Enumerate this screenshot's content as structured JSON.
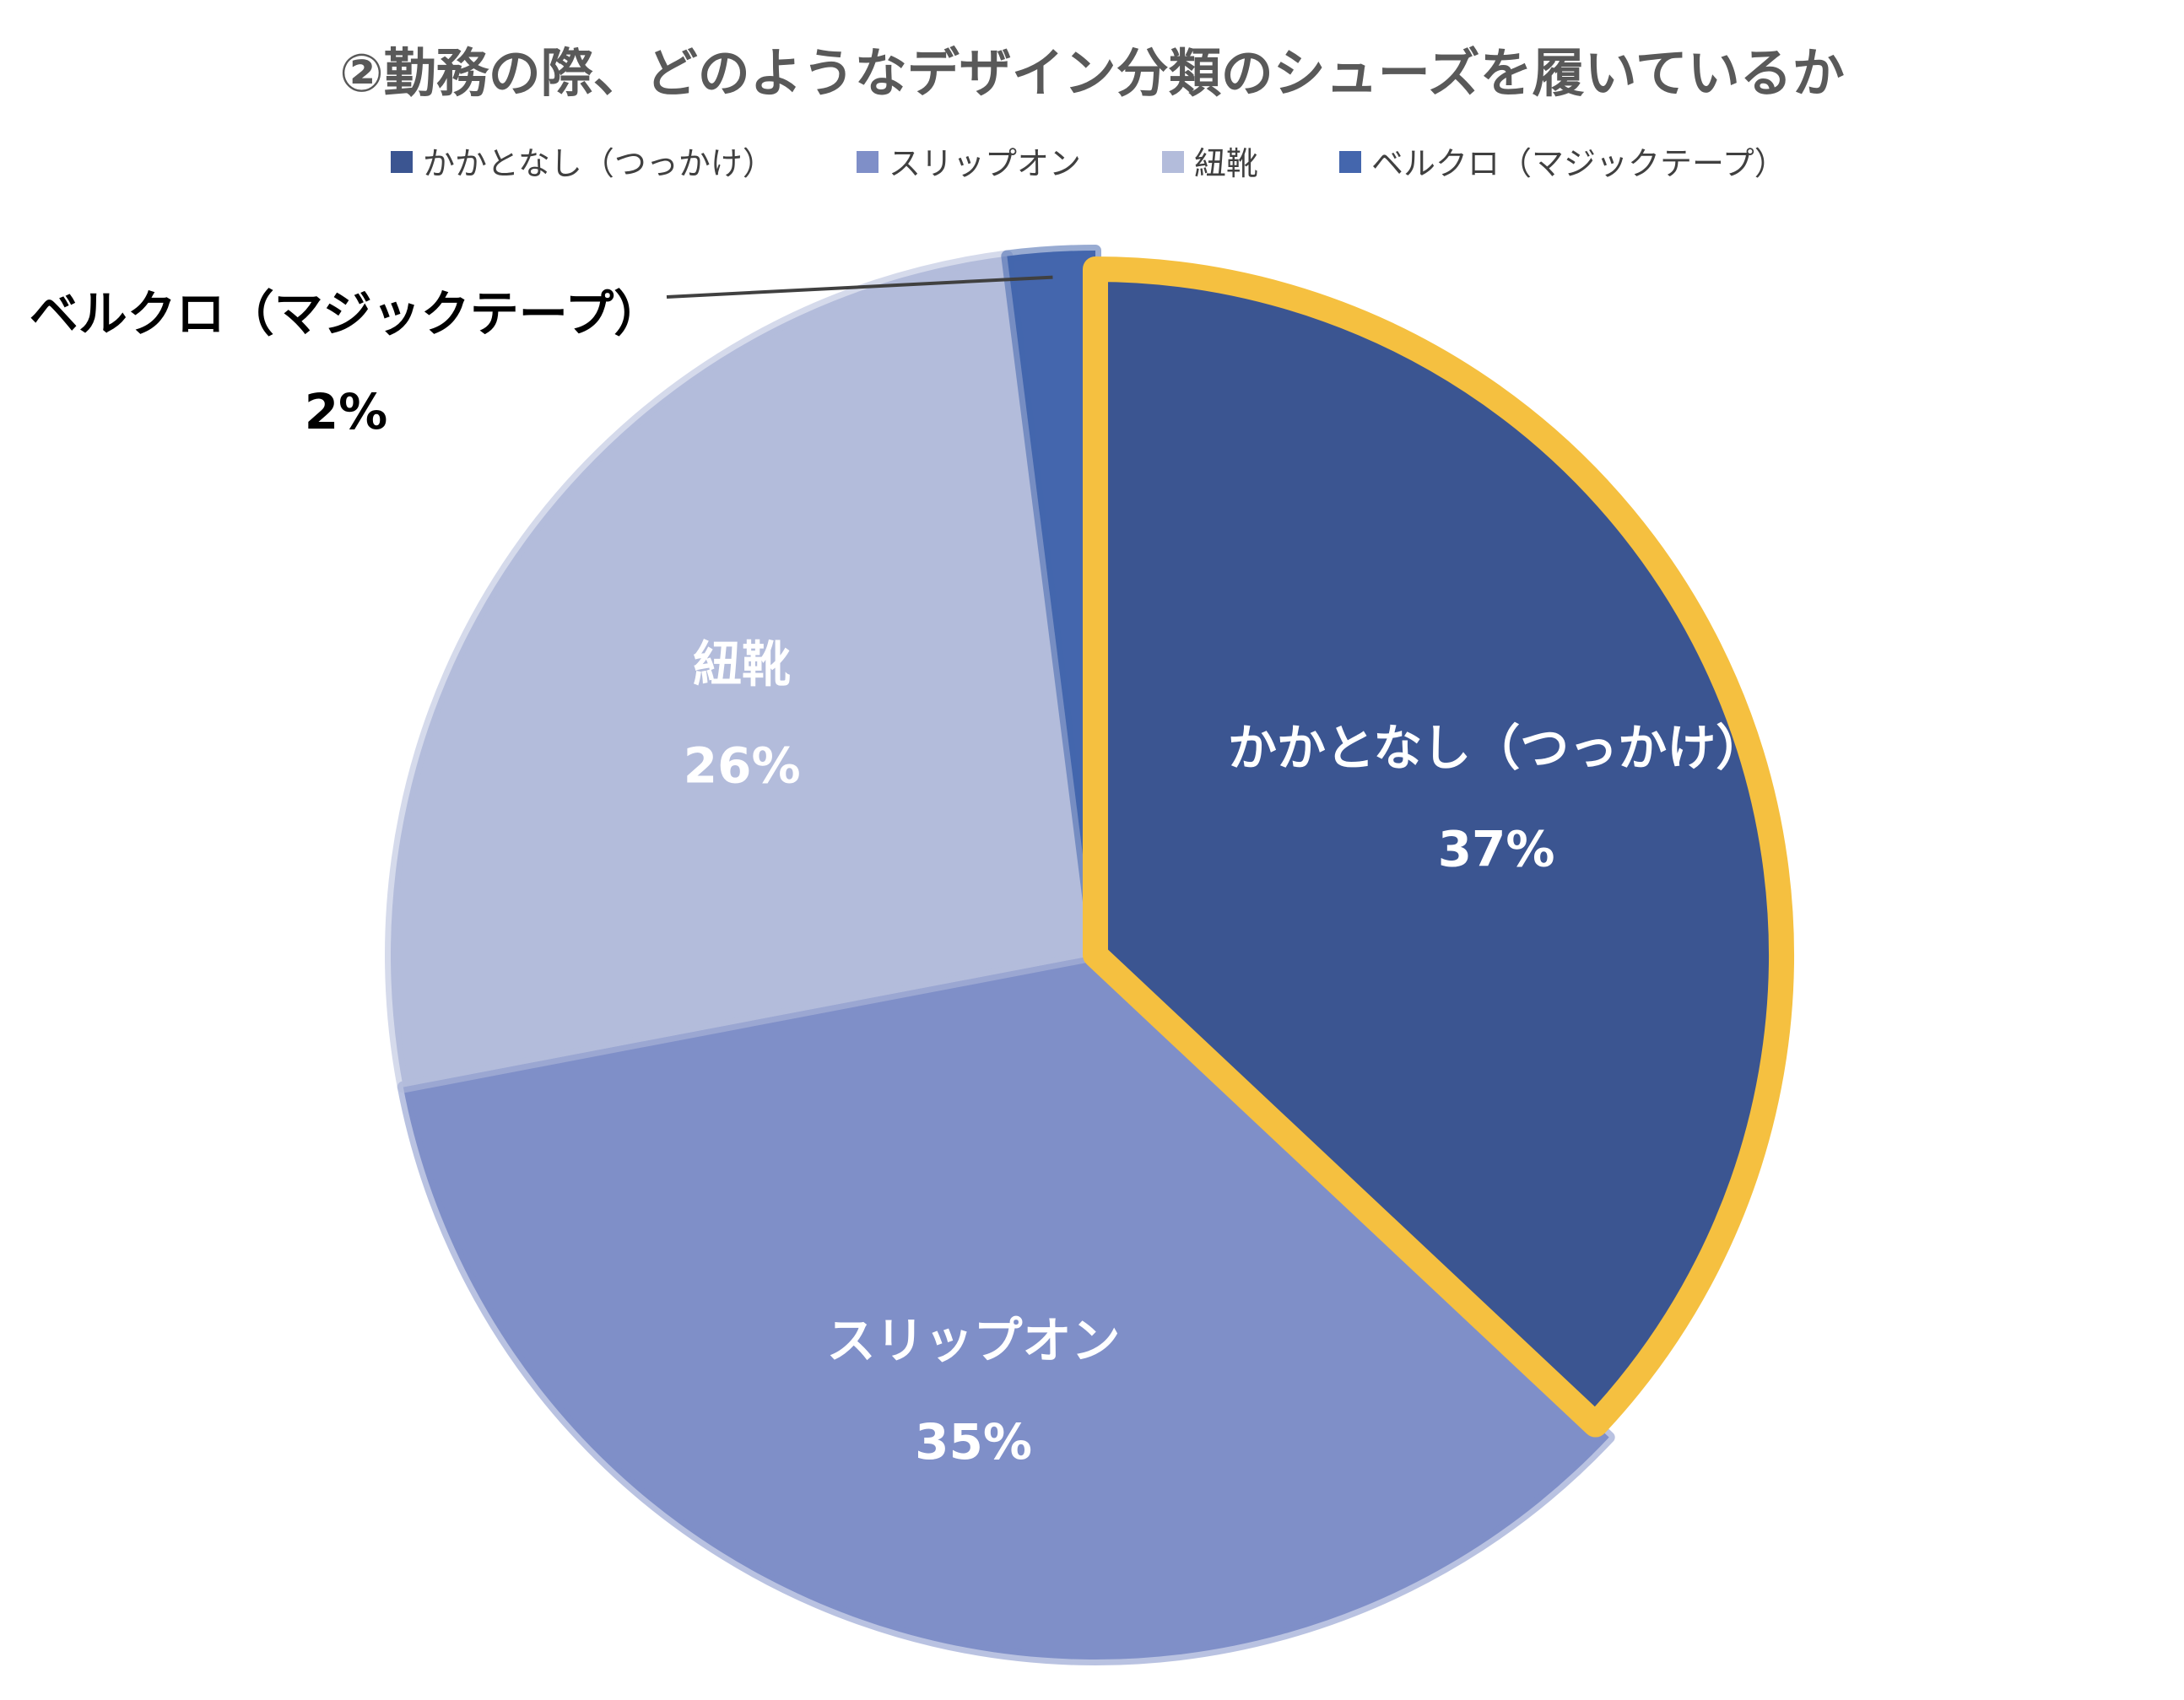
{
  "chart_data": {
    "type": "pie",
    "title": "②勤務の際、どのようなデザイン分類のシューズを履いているか",
    "legend_position": "top",
    "slices": [
      {
        "label": "かかとなし（つっかけ）",
        "value": 37,
        "value_label": "37%",
        "color": "#3b5591",
        "highlight_color": "#f5c040",
        "label_position": "inside"
      },
      {
        "label": "スリップオン",
        "value": 35,
        "value_label": "35%",
        "color": "#7f8fc8",
        "label_position": "inside"
      },
      {
        "label": "紐靴",
        "value": 26,
        "value_label": "26%",
        "color": "#b3bcdb",
        "label_position": "inside"
      },
      {
        "label": "ベルクロ（マジックテープ）",
        "value": 2,
        "value_label": "2%",
        "color": "#4466ad",
        "label_position": "outside"
      }
    ]
  }
}
